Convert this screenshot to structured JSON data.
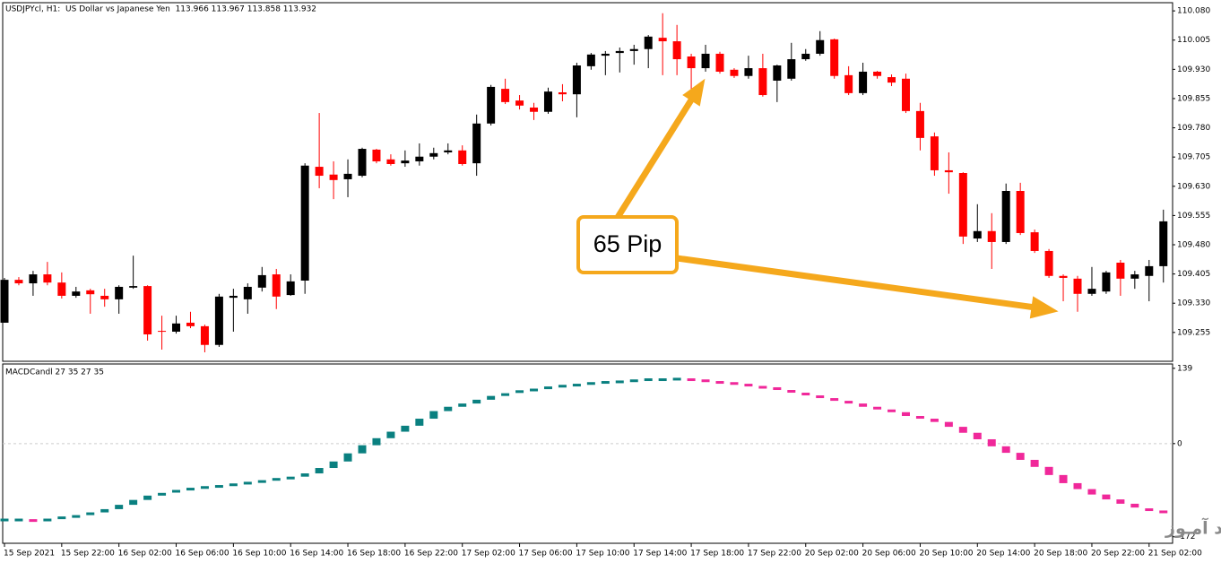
{
  "chart_data": [
    {
      "type": "candlestick",
      "title": "USDJPYcl, H1:  US Dollar vs Japanese Yen  113.966 113.967 113.858 113.932",
      "annotation": "65 Pip",
      "categories": [
        "15 Sep 2021",
        null,
        null,
        null,
        "15 Sep 22:00",
        null,
        null,
        null,
        "16 Sep 02:00",
        null,
        null,
        null,
        "16 Sep 06:00",
        null,
        null,
        null,
        "16 Sep 10:00",
        null,
        null,
        null,
        "16 Sep 14:00",
        null,
        null,
        null,
        "16 Sep 18:00",
        null,
        null,
        null,
        "16 Sep 22:00",
        null,
        null,
        null,
        "17 Sep 02:00",
        null,
        null,
        null,
        "17 Sep 06:00",
        null,
        null,
        null,
        "17 Sep 10:00",
        null,
        null,
        null,
        "17 Sep 14:00",
        null,
        null,
        null,
        "17 Sep 18:00",
        null,
        null,
        null,
        "17 Sep 22:00",
        null,
        null,
        null,
        "20 Sep 02:00",
        null,
        null,
        null,
        "20 Sep 06:00",
        null,
        null,
        null,
        "20 Sep 10:00",
        null,
        null,
        null,
        "20 Sep 14:00",
        null,
        null,
        null,
        "20 Sep 18:00",
        null,
        null,
        null,
        "20 Sep 22:00",
        null,
        null,
        null,
        "21 Sep 02:00",
        null
      ],
      "open": [
        109.28,
        109.39,
        109.381,
        109.404,
        109.383,
        109.349,
        109.363,
        109.349,
        109.34,
        109.37,
        109.374,
        109.259,
        109.257,
        109.28,
        109.271,
        109.223,
        109.344,
        109.34,
        109.37,
        109.404,
        109.351,
        109.388,
        109.68,
        109.66,
        109.648,
        109.657,
        109.724,
        109.699,
        109.689,
        109.694,
        109.706,
        109.717,
        109.722,
        109.689,
        109.791,
        109.88,
        109.85,
        109.832,
        109.821,
        109.871,
        109.866,
        109.938,
        109.965,
        109.972,
        109.977,
        109.982,
        110.011,
        110.002,
        109.963,
        109.933,
        109.97,
        109.929,
        109.913,
        109.933,
        109.901,
        109.906,
        109.956,
        109.97,
        110.007,
        109.915,
        109.869,
        109.924,
        109.91,
        109.906,
        109.823,
        109.758,
        109.671,
        109.664,
        109.496,
        109.515,
        109.487,
        109.618,
        109.512,
        109.464,
        109.4,
        109.393,
        109.354,
        109.36,
        109.434,
        109.393,
        109.4,
        109.425
      ],
      "high": [
        109.395,
        109.397,
        109.413,
        109.436,
        109.409,
        109.372,
        109.367,
        109.367,
        109.376,
        109.452,
        109.376,
        109.298,
        109.298,
        109.308,
        109.275,
        109.354,
        109.367,
        109.381,
        109.423,
        109.418,
        109.404,
        109.689,
        109.818,
        109.694,
        109.699,
        109.729,
        109.726,
        109.712,
        109.722,
        109.74,
        109.729,
        109.74,
        109.735,
        109.814,
        109.89,
        109.906,
        109.864,
        109.844,
        109.883,
        109.892,
        109.947,
        109.972,
        109.977,
        109.986,
        109.993,
        110.018,
        110.074,
        110.044,
        109.97,
        109.993,
        109.975,
        109.933,
        109.965,
        109.97,
        109.942,
        109.998,
        109.982,
        110.028,
        110.009,
        109.938,
        109.947,
        109.926,
        109.917,
        109.919,
        109.844,
        109.768,
        109.717,
        109.666,
        109.584,
        109.561,
        109.637,
        109.639,
        109.519,
        109.469,
        109.404,
        109.4,
        109.423,
        109.413,
        109.441,
        109.413,
        109.441,
        109.57
      ],
      "low": [
        109.28,
        109.376,
        109.349,
        109.376,
        109.342,
        109.344,
        109.303,
        109.321,
        109.303,
        109.367,
        109.234,
        109.211,
        109.252,
        109.266,
        109.204,
        109.218,
        109.257,
        109.303,
        109.36,
        109.315,
        109.349,
        109.354,
        109.625,
        109.597,
        109.602,
        109.653,
        109.689,
        109.683,
        109.68,
        109.683,
        109.699,
        109.712,
        109.683,
        109.657,
        109.786,
        109.841,
        109.827,
        109.8,
        109.816,
        109.848,
        109.807,
        109.929,
        109.915,
        109.922,
        109.942,
        109.933,
        109.915,
        109.915,
        109.878,
        109.924,
        109.919,
        109.908,
        109.906,
        109.86,
        109.846,
        109.901,
        109.952,
        109.965,
        109.906,
        109.864,
        109.864,
        109.906,
        109.887,
        109.818,
        109.722,
        109.657,
        109.611,
        109.482,
        109.487,
        109.418,
        109.482,
        109.505,
        109.459,
        109.395,
        109.335,
        109.308,
        109.349,
        109.354,
        109.349,
        109.367,
        109.335,
        109.383
      ],
      "close": [
        109.39,
        109.381,
        109.404,
        109.383,
        109.349,
        109.36,
        109.353,
        109.34,
        109.372,
        109.374,
        109.25,
        109.257,
        109.278,
        109.271,
        109.223,
        109.347,
        109.349,
        109.372,
        109.402,
        109.347,
        109.386,
        109.683,
        109.657,
        109.646,
        109.662,
        109.726,
        109.694,
        109.687,
        109.696,
        109.706,
        109.715,
        109.722,
        109.687,
        109.791,
        109.885,
        109.846,
        109.837,
        109.821,
        109.873,
        109.866,
        109.94,
        109.968,
        109.97,
        109.977,
        109.982,
        110.014,
        110.002,
        109.956,
        109.933,
        109.97,
        109.924,
        109.913,
        109.933,
        109.864,
        109.94,
        109.956,
        109.97,
        110.005,
        109.913,
        109.869,
        109.924,
        109.913,
        109.896,
        109.823,
        109.754,
        109.671,
        109.666,
        109.501,
        109.515,
        109.487,
        109.618,
        109.51,
        109.464,
        109.4,
        109.395,
        109.354,
        109.367,
        109.409,
        109.393,
        109.404,
        109.425,
        109.54
      ],
      "up_color": "#000000",
      "down_color": "#ff0000",
      "ylim": [
        109.181,
        110.101
      ],
      "yticks": [
        {
          "value": 110.08,
          "label": "110.080"
        },
        110.005,
        {
          "value": 109.93,
          "label": "109.930"
        },
        109.855,
        {
          "value": 109.78,
          "label": "109.780"
        },
        109.705,
        {
          "value": 109.63,
          "label": "109.630"
        },
        109.555,
        {
          "value": 109.48,
          "label": "109.480"
        },
        109.405,
        {
          "value": 109.33,
          "label": "109.330"
        },
        109.255
      ],
      "grid": false
    },
    {
      "type": "macd",
      "title": "MACDCandl 27 35 27 35",
      "values": [
        -141,
        -141,
        -142,
        -141,
        -137,
        -132,
        -127,
        -121,
        -113,
        -104,
        -96,
        -91,
        -88,
        -84,
        -81,
        -79,
        -76,
        -73,
        -70,
        -66,
        -61,
        -55,
        -45,
        -33,
        -18,
        -3,
        10,
        22,
        33,
        46,
        60,
        68,
        74,
        81,
        88,
        93,
        96,
        99,
        103,
        106,
        108,
        111,
        113,
        114,
        116,
        118,
        118,
        119,
        118,
        116,
        113,
        111,
        108,
        104,
        99,
        94,
        89,
        84,
        79,
        74,
        68,
        63,
        58,
        51,
        46,
        40,
        31,
        20,
        8,
        -5,
        -17,
        -30,
        -43,
        -58,
        -73,
        -84,
        -94,
        -103,
        -111,
        -118,
        -122,
        -126
      ],
      "up_color": "#0a8080",
      "down_color": "#f0289a",
      "ylim": [
        -184,
        147
      ],
      "yticks": [
        139,
        0,
        -172
      ],
      "zero_line": true
    }
  ],
  "watermark": "انتشار در وبسایت  سـود آمـوز"
}
